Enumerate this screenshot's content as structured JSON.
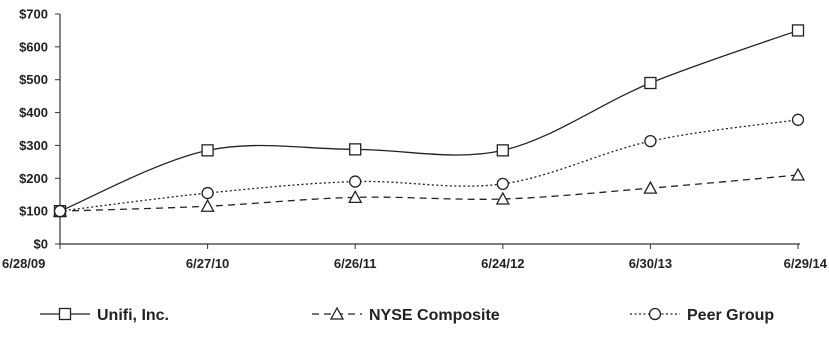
{
  "chart_data": {
    "type": "line",
    "categories": [
      "6/28/09",
      "6/27/10",
      "6/26/11",
      "6/24/12",
      "6/30/13",
      "6/29/14"
    ],
    "ylim": [
      0,
      700
    ],
    "yticks": [
      0,
      100,
      200,
      300,
      400,
      500,
      600,
      700
    ],
    "ytick_labels": [
      "$0",
      "$100",
      "$200",
      "$300",
      "$400",
      "$500",
      "$600",
      "$700"
    ],
    "grid": false,
    "legend_position": "bottom",
    "series": [
      {
        "name": "Unifi, Inc.",
        "marker": "square",
        "line": "solid",
        "values": [
          100,
          285,
          288,
          285,
          490,
          650
        ]
      },
      {
        "name": "NYSE Composite",
        "marker": "triangle",
        "line": "dashed",
        "values": [
          100,
          115,
          142,
          137,
          170,
          210
        ]
      },
      {
        "name": "Peer Group",
        "marker": "circle",
        "line": "dotted",
        "values": [
          100,
          155,
          190,
          183,
          313,
          378
        ]
      }
    ],
    "colors": {
      "line": "#222222",
      "axis": "#333333"
    }
  }
}
